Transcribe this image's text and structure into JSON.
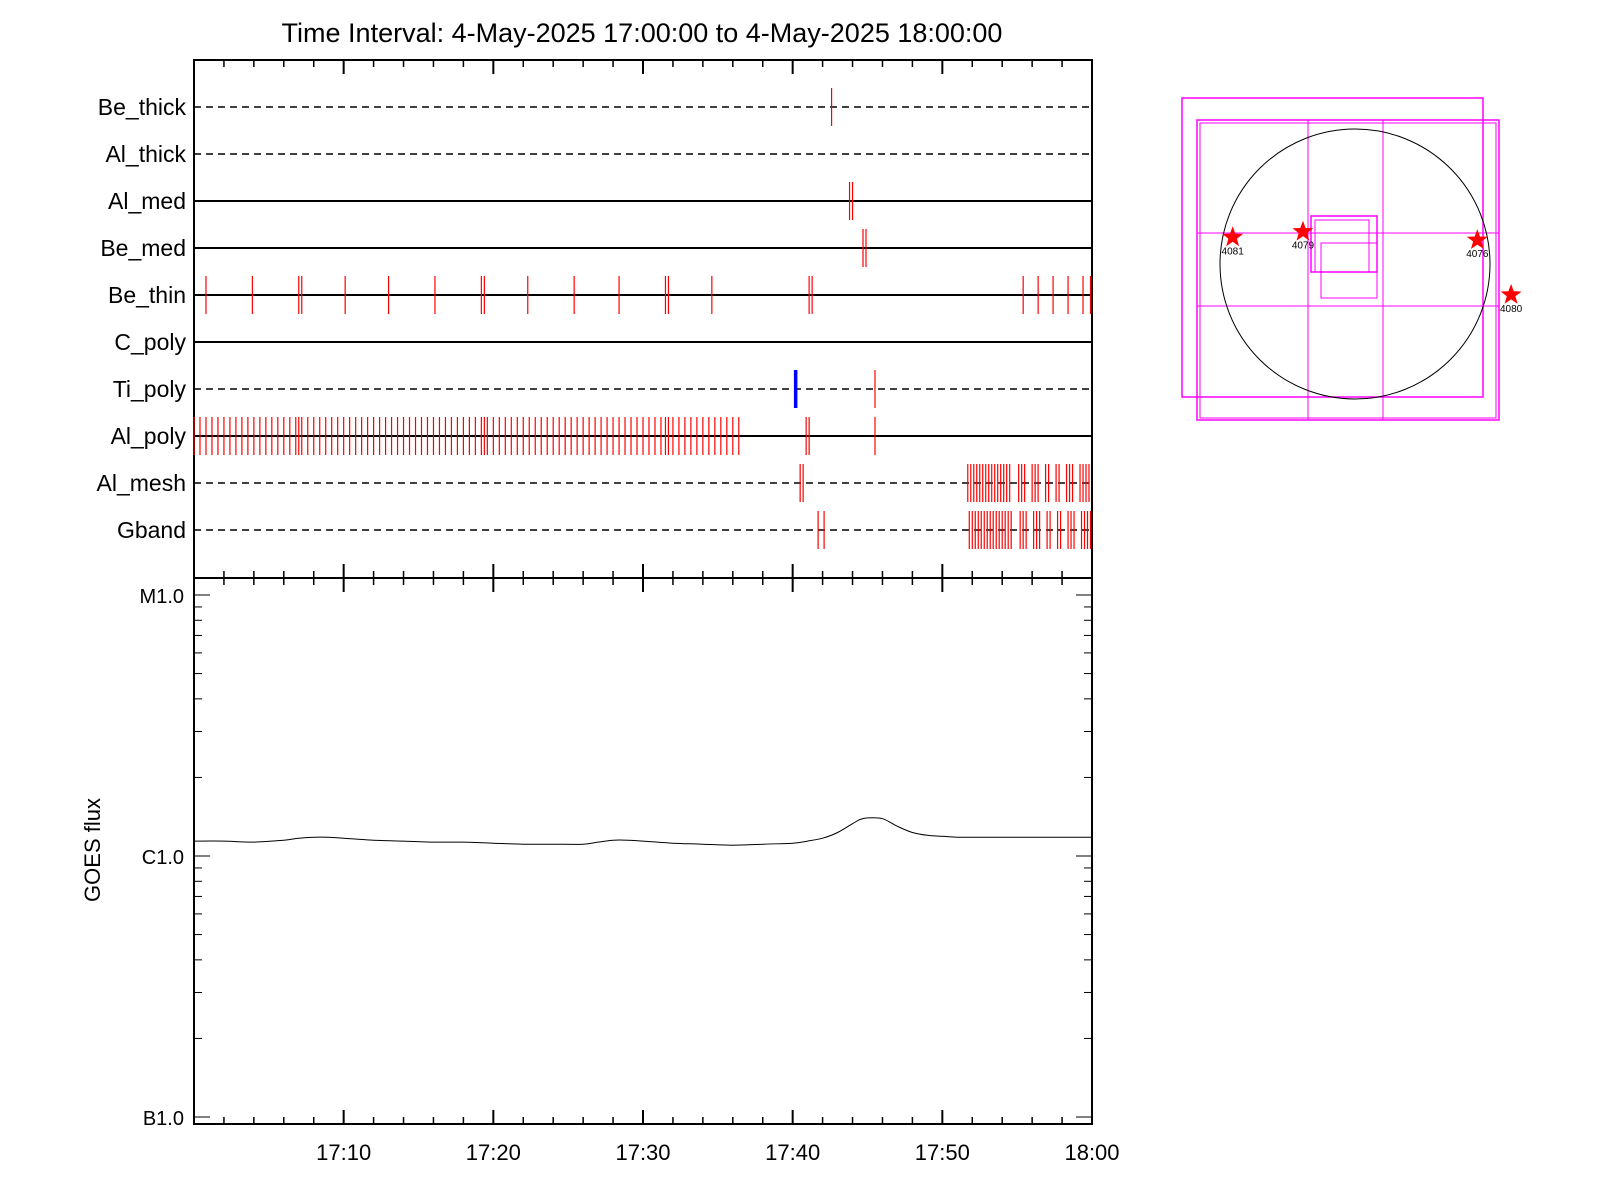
{
  "title": "Time Interval:  4-May-2025 17:00:00 to  4-May-2025 18:00:00",
  "timeline": {
    "rows": [
      {
        "label": "Be_thick",
        "style": "dashed",
        "marks": [
          42.6
        ]
      },
      {
        "label": "Al_thick",
        "style": "dashed",
        "marks": []
      },
      {
        "label": "Al_med",
        "style": "solid",
        "marks": [
          43.8,
          44.0
        ]
      },
      {
        "label": "Be_med",
        "style": "solid",
        "marks": [
          44.7,
          44.9
        ]
      },
      {
        "label": "Be_thin",
        "style": "solid",
        "marks": [
          0.8,
          3.9,
          7.0,
          7.2,
          10.1,
          13.0,
          16.1,
          19.2,
          19.4,
          22.3,
          25.4,
          28.4,
          31.5,
          31.7,
          34.6,
          41.1,
          41.3,
          55.4,
          56.4,
          57.4,
          58.4,
          59.4,
          59.9
        ]
      },
      {
        "label": "C_poly",
        "style": "solid",
        "marks": []
      },
      {
        "label": "Ti_poly",
        "style": "dashed",
        "marks": [
          45.5
        ],
        "blue_marks": [
          40.2
        ]
      },
      {
        "label": "Al_poly",
        "style": "solid",
        "marks": [
          0.0,
          0.4,
          0.8,
          1.2,
          1.6,
          2.0,
          2.4,
          2.8,
          3.2,
          3.6,
          4.0,
          4.4,
          4.8,
          5.2,
          5.6,
          6.0,
          6.4,
          6.8,
          7.0,
          7.2,
          7.6,
          8.0,
          8.4,
          8.8,
          9.2,
          9.6,
          10.0,
          10.4,
          10.8,
          11.2,
          11.6,
          12.0,
          12.4,
          12.8,
          13.2,
          13.6,
          14.0,
          14.4,
          14.8,
          15.2,
          15.6,
          16.0,
          16.4,
          16.8,
          17.2,
          17.6,
          18.0,
          18.4,
          18.8,
          19.2,
          19.4,
          19.6,
          20.0,
          20.4,
          20.8,
          21.2,
          21.6,
          22.0,
          22.4,
          22.8,
          23.2,
          23.6,
          24.0,
          24.4,
          24.8,
          25.2,
          25.6,
          26.0,
          26.4,
          26.8,
          27.2,
          27.6,
          28.0,
          28.4,
          28.8,
          29.2,
          29.6,
          30.0,
          30.4,
          30.8,
          31.2,
          31.5,
          31.7,
          32.0,
          32.4,
          32.8,
          33.2,
          33.6,
          34.0,
          34.4,
          34.8,
          35.2,
          35.6,
          36.0,
          36.4,
          40.9,
          41.1,
          45.5
        ]
      },
      {
        "label": "Al_mesh",
        "style": "dashed",
        "marks": [
          40.5,
          40.7,
          51.7,
          51.9,
          52.1,
          52.3,
          52.5,
          52.7,
          52.9,
          53.1,
          53.3,
          53.5,
          53.7,
          53.9,
          54.1,
          54.3,
          54.5,
          55.1,
          55.3,
          55.5,
          56.0,
          56.2,
          56.4,
          56.9,
          57.1,
          57.6,
          57.8,
          58.3,
          58.5,
          58.7,
          59.2,
          59.4,
          59.6,
          59.8
        ]
      },
      {
        "label": "Gband",
        "style": "dashed",
        "marks": [
          41.7,
          42.1,
          51.8,
          52.0,
          52.2,
          52.4,
          52.6,
          52.8,
          53.0,
          53.2,
          53.4,
          53.6,
          53.8,
          54.0,
          54.2,
          54.4,
          54.6,
          55.2,
          55.4,
          55.6,
          56.1,
          56.3,
          56.5,
          57.0,
          57.2,
          57.7,
          57.9,
          58.4,
          58.6,
          58.8,
          59.3,
          59.5,
          59.7,
          59.9
        ]
      }
    ]
  },
  "chart_data": {
    "type": "line",
    "ylabel": "GOES flux",
    "yscale": "log",
    "ylim": [
      1e-07,
      1e-05
    ],
    "xlim_minutes": [
      0,
      60
    ],
    "yticks": [
      {
        "value": 1e-05,
        "label": "M1.0"
      },
      {
        "value": 1e-06,
        "label": "C1.0"
      },
      {
        "value": 1e-07,
        "label": "B1.0"
      }
    ],
    "xticks": [
      {
        "minute": 10,
        "label": "17:10"
      },
      {
        "minute": 20,
        "label": "17:20"
      },
      {
        "minute": 30,
        "label": "17:30"
      },
      {
        "minute": 40,
        "label": "17:40"
      },
      {
        "minute": 50,
        "label": "17:50"
      },
      {
        "minute": 60,
        "label": "18:00"
      }
    ],
    "series": [
      {
        "x_minutes": [
          0,
          2,
          4,
          6,
          7,
          8,
          9,
          10,
          12,
          14,
          16,
          18,
          20,
          22,
          24,
          26,
          27,
          28,
          29,
          30,
          32,
          34,
          36,
          38,
          40,
          41,
          42,
          43,
          44,
          44.5,
          45,
          46,
          47,
          48,
          49,
          50,
          51,
          52,
          54,
          56,
          58,
          60
        ],
        "y": [
          1.14e-06,
          1.14e-06,
          1.13e-06,
          1.15e-06,
          1.17e-06,
          1.18e-06,
          1.18e-06,
          1.17e-06,
          1.15e-06,
          1.14e-06,
          1.13e-06,
          1.13e-06,
          1.12e-06,
          1.11e-06,
          1.11e-06,
          1.11e-06,
          1.13e-06,
          1.15e-06,
          1.15e-06,
          1.14e-06,
          1.12e-06,
          1.11e-06,
          1.1e-06,
          1.11e-06,
          1.12e-06,
          1.14e-06,
          1.17e-06,
          1.23e-06,
          1.33e-06,
          1.38e-06,
          1.4e-06,
          1.39e-06,
          1.3e-06,
          1.23e-06,
          1.2e-06,
          1.19e-06,
          1.18e-06,
          1.18e-06,
          1.18e-06,
          1.18e-06,
          1.18e-06,
          1.18e-06
        ]
      }
    ]
  },
  "sun_map": {
    "regions": [
      {
        "label": "4081",
        "x": -870,
        "y": 190
      },
      {
        "label": "4079",
        "x": -370,
        "y": 230
      },
      {
        "label": "4076",
        "x": 870,
        "y": 170
      },
      {
        "label": "4080",
        "x": 1110,
        "y": -220
      }
    ],
    "colors": {
      "fov": "#ff00ff",
      "region": "#ff0000",
      "limb": "#000000"
    }
  },
  "colors": {
    "event_mark": "#ff0000",
    "blue_mark": "#0000ff",
    "axis": "#000000"
  }
}
